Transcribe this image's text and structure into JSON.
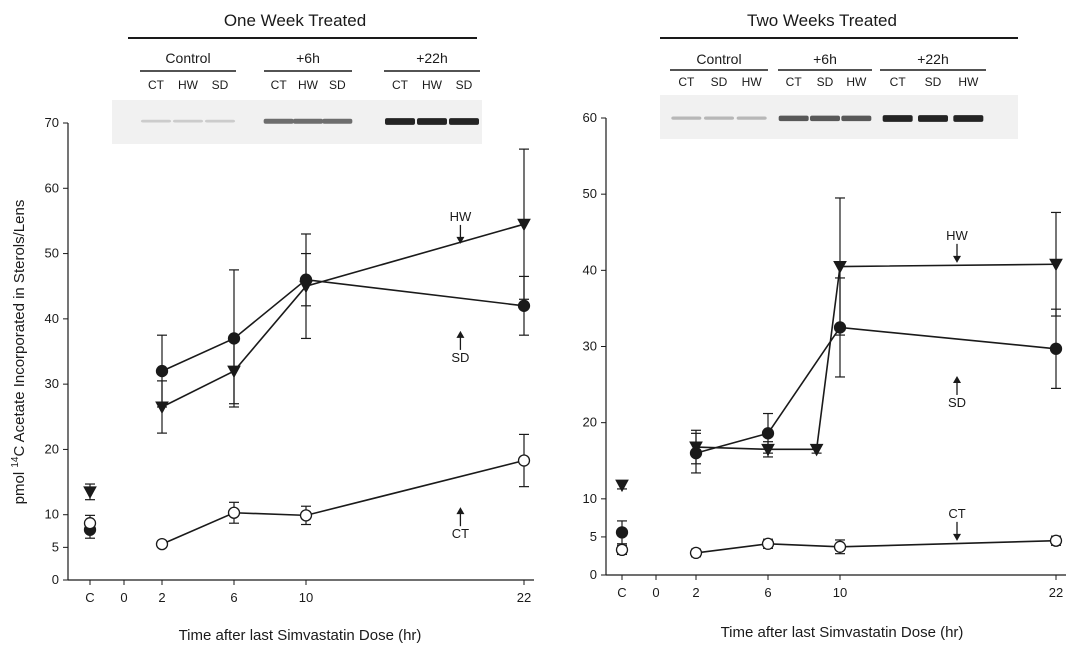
{
  "figure": {
    "ylabel_pre": "pmol ",
    "ylabel_sup": "14",
    "ylabel_post": "C Acetate Incorporated in Sterols/Lens"
  },
  "chart_data": [
    {
      "type": "line",
      "title": "One Week Treated",
      "xlabel": "Time after last Simvastatin Dose (hr)",
      "ylabel": "pmol 14C Acetate Incorporated in Sterols/Lens",
      "x_tick_labels": [
        "C",
        "0",
        "2",
        "6",
        "10",
        "22"
      ],
      "y_ticks": [
        0,
        5,
        10,
        20,
        30,
        40,
        50,
        60,
        70
      ],
      "ylim": [
        0,
        70
      ],
      "xlim": [
        -4,
        23
      ],
      "control_x": -2.6,
      "blot": {
        "groups": [
          {
            "name": "Control",
            "lanes": [
              "CT",
              "HW",
              "SD"
            ],
            "band_intensity": 0.15
          },
          {
            "name": "+6h",
            "lanes": [
              "CT",
              "HW",
              "SD"
            ],
            "band_intensity": 0.6
          },
          {
            "name": "+22h",
            "lanes": [
              "CT",
              "HW",
              "SD"
            ],
            "band_intensity": 0.95
          }
        ]
      },
      "series": [
        {
          "name": "HW",
          "marker": "triangle-down",
          "fill": "#1a1a1a",
          "control": {
            "y": 13.5,
            "err": 1.2
          },
          "points": [
            {
              "x": 2,
              "y": 26.5,
              "err": 4
            },
            {
              "x": 6,
              "y": 32,
              "err": 5
            },
            {
              "x": 10,
              "y": 45,
              "err": 8
            },
            {
              "x": 22,
              "y": 54.5,
              "err": 11.5
            }
          ]
        },
        {
          "name": "SD",
          "marker": "circle",
          "fill": "#1a1a1a",
          "control": {
            "y": 7.7,
            "err": 1.3
          },
          "points": [
            {
              "x": 2,
              "y": 32,
              "err": 5.5
            },
            {
              "x": 6,
              "y": 37,
              "err": 10.5
            },
            {
              "x": 10,
              "y": 46,
              "err": 4
            },
            {
              "x": 22,
              "y": 42,
              "err": 4.5
            }
          ]
        },
        {
          "name": "CT",
          "marker": "circle",
          "fill": "#ffffff",
          "control": {
            "y": 8.7,
            "err": 1.2
          },
          "points": [
            {
              "x": 2,
              "y": 5.5,
              "err": 0.5
            },
            {
              "x": 6,
              "y": 10.3,
              "err": 1.6
            },
            {
              "x": 10,
              "y": 9.9,
              "err": 1.4
            },
            {
              "x": 22,
              "y": 18.3,
              "err": 4
            }
          ]
        }
      ],
      "annotations": [
        {
          "text": "HW",
          "x": 18.5,
          "y": 55,
          "arrow": "down"
        },
        {
          "text": "SD",
          "x": 18.5,
          "y": 38,
          "arrow": "up"
        },
        {
          "text": "CT",
          "x": 18.5,
          "y": 11,
          "arrow": "up"
        }
      ]
    },
    {
      "type": "line",
      "title": "Two Weeks Treated",
      "xlabel": "Time after last Simvastatin Dose (hr)",
      "ylabel": "",
      "x_tick_labels": [
        "C",
        "0",
        "2",
        "6",
        "10",
        "22"
      ],
      "y_ticks": [
        0,
        5,
        10,
        20,
        30,
        40,
        50,
        60
      ],
      "ylim": [
        0,
        60
      ],
      "xlim": [
        -4,
        23
      ],
      "control_x": -2.6,
      "blot": {
        "groups": [
          {
            "name": "Control",
            "lanes": [
              "CT",
              "SD",
              "HW"
            ],
            "band_intensity": 0.25
          },
          {
            "name": "+6h",
            "lanes": [
              "CT",
              "SD",
              "HW"
            ],
            "band_intensity": 0.7
          },
          {
            "name": "+22h",
            "lanes": [
              "CT",
              "SD",
              "HW"
            ],
            "band_intensity": 0.95
          }
        ]
      },
      "series": [
        {
          "name": "HW",
          "marker": "triangle-down",
          "fill": "#1a1a1a",
          "control": {
            "y": 11.8,
            "err": 0.5
          },
          "points": [
            {
              "x": 2,
              "y": 16.8,
              "err": 2.2
            },
            {
              "x": 6,
              "y": 16.5,
              "err": 1
            },
            {
              "x": 8.7,
              "y": 16.5,
              "err": 0.5
            },
            {
              "x": 10,
              "y": 40.5,
              "err": 9
            },
            {
              "x": 22,
              "y": 40.8,
              "err": 6.8
            }
          ]
        },
        {
          "name": "SD",
          "marker": "circle",
          "fill": "#1a1a1a",
          "control": {
            "y": 5.6,
            "err": 1.5
          },
          "points": [
            {
              "x": 2,
              "y": 16,
              "err": 2.6
            },
            {
              "x": 6,
              "y": 18.6,
              "err": 2.6
            },
            {
              "x": 10,
              "y": 32.5,
              "err": 6.5
            },
            {
              "x": 22,
              "y": 29.7,
              "err": 5.2
            }
          ]
        },
        {
          "name": "CT",
          "marker": "circle",
          "fill": "#ffffff",
          "control": {
            "y": 3.3,
            "err": 0.6
          },
          "points": [
            {
              "x": 2,
              "y": 2.9,
              "err": 0.5
            },
            {
              "x": 6,
              "y": 4.1,
              "err": 0.6
            },
            {
              "x": 10,
              "y": 3.7,
              "err": 0.9
            },
            {
              "x": 22,
              "y": 4.5,
              "err": 0.6
            }
          ]
        }
      ],
      "annotations": [
        {
          "text": "HW",
          "x": 16.5,
          "y": 44,
          "arrow": "down"
        },
        {
          "text": "SD",
          "x": 16.5,
          "y": 26,
          "arrow": "up"
        },
        {
          "text": "CT",
          "x": 16.5,
          "y": 7.5,
          "arrow": "down"
        }
      ]
    }
  ]
}
